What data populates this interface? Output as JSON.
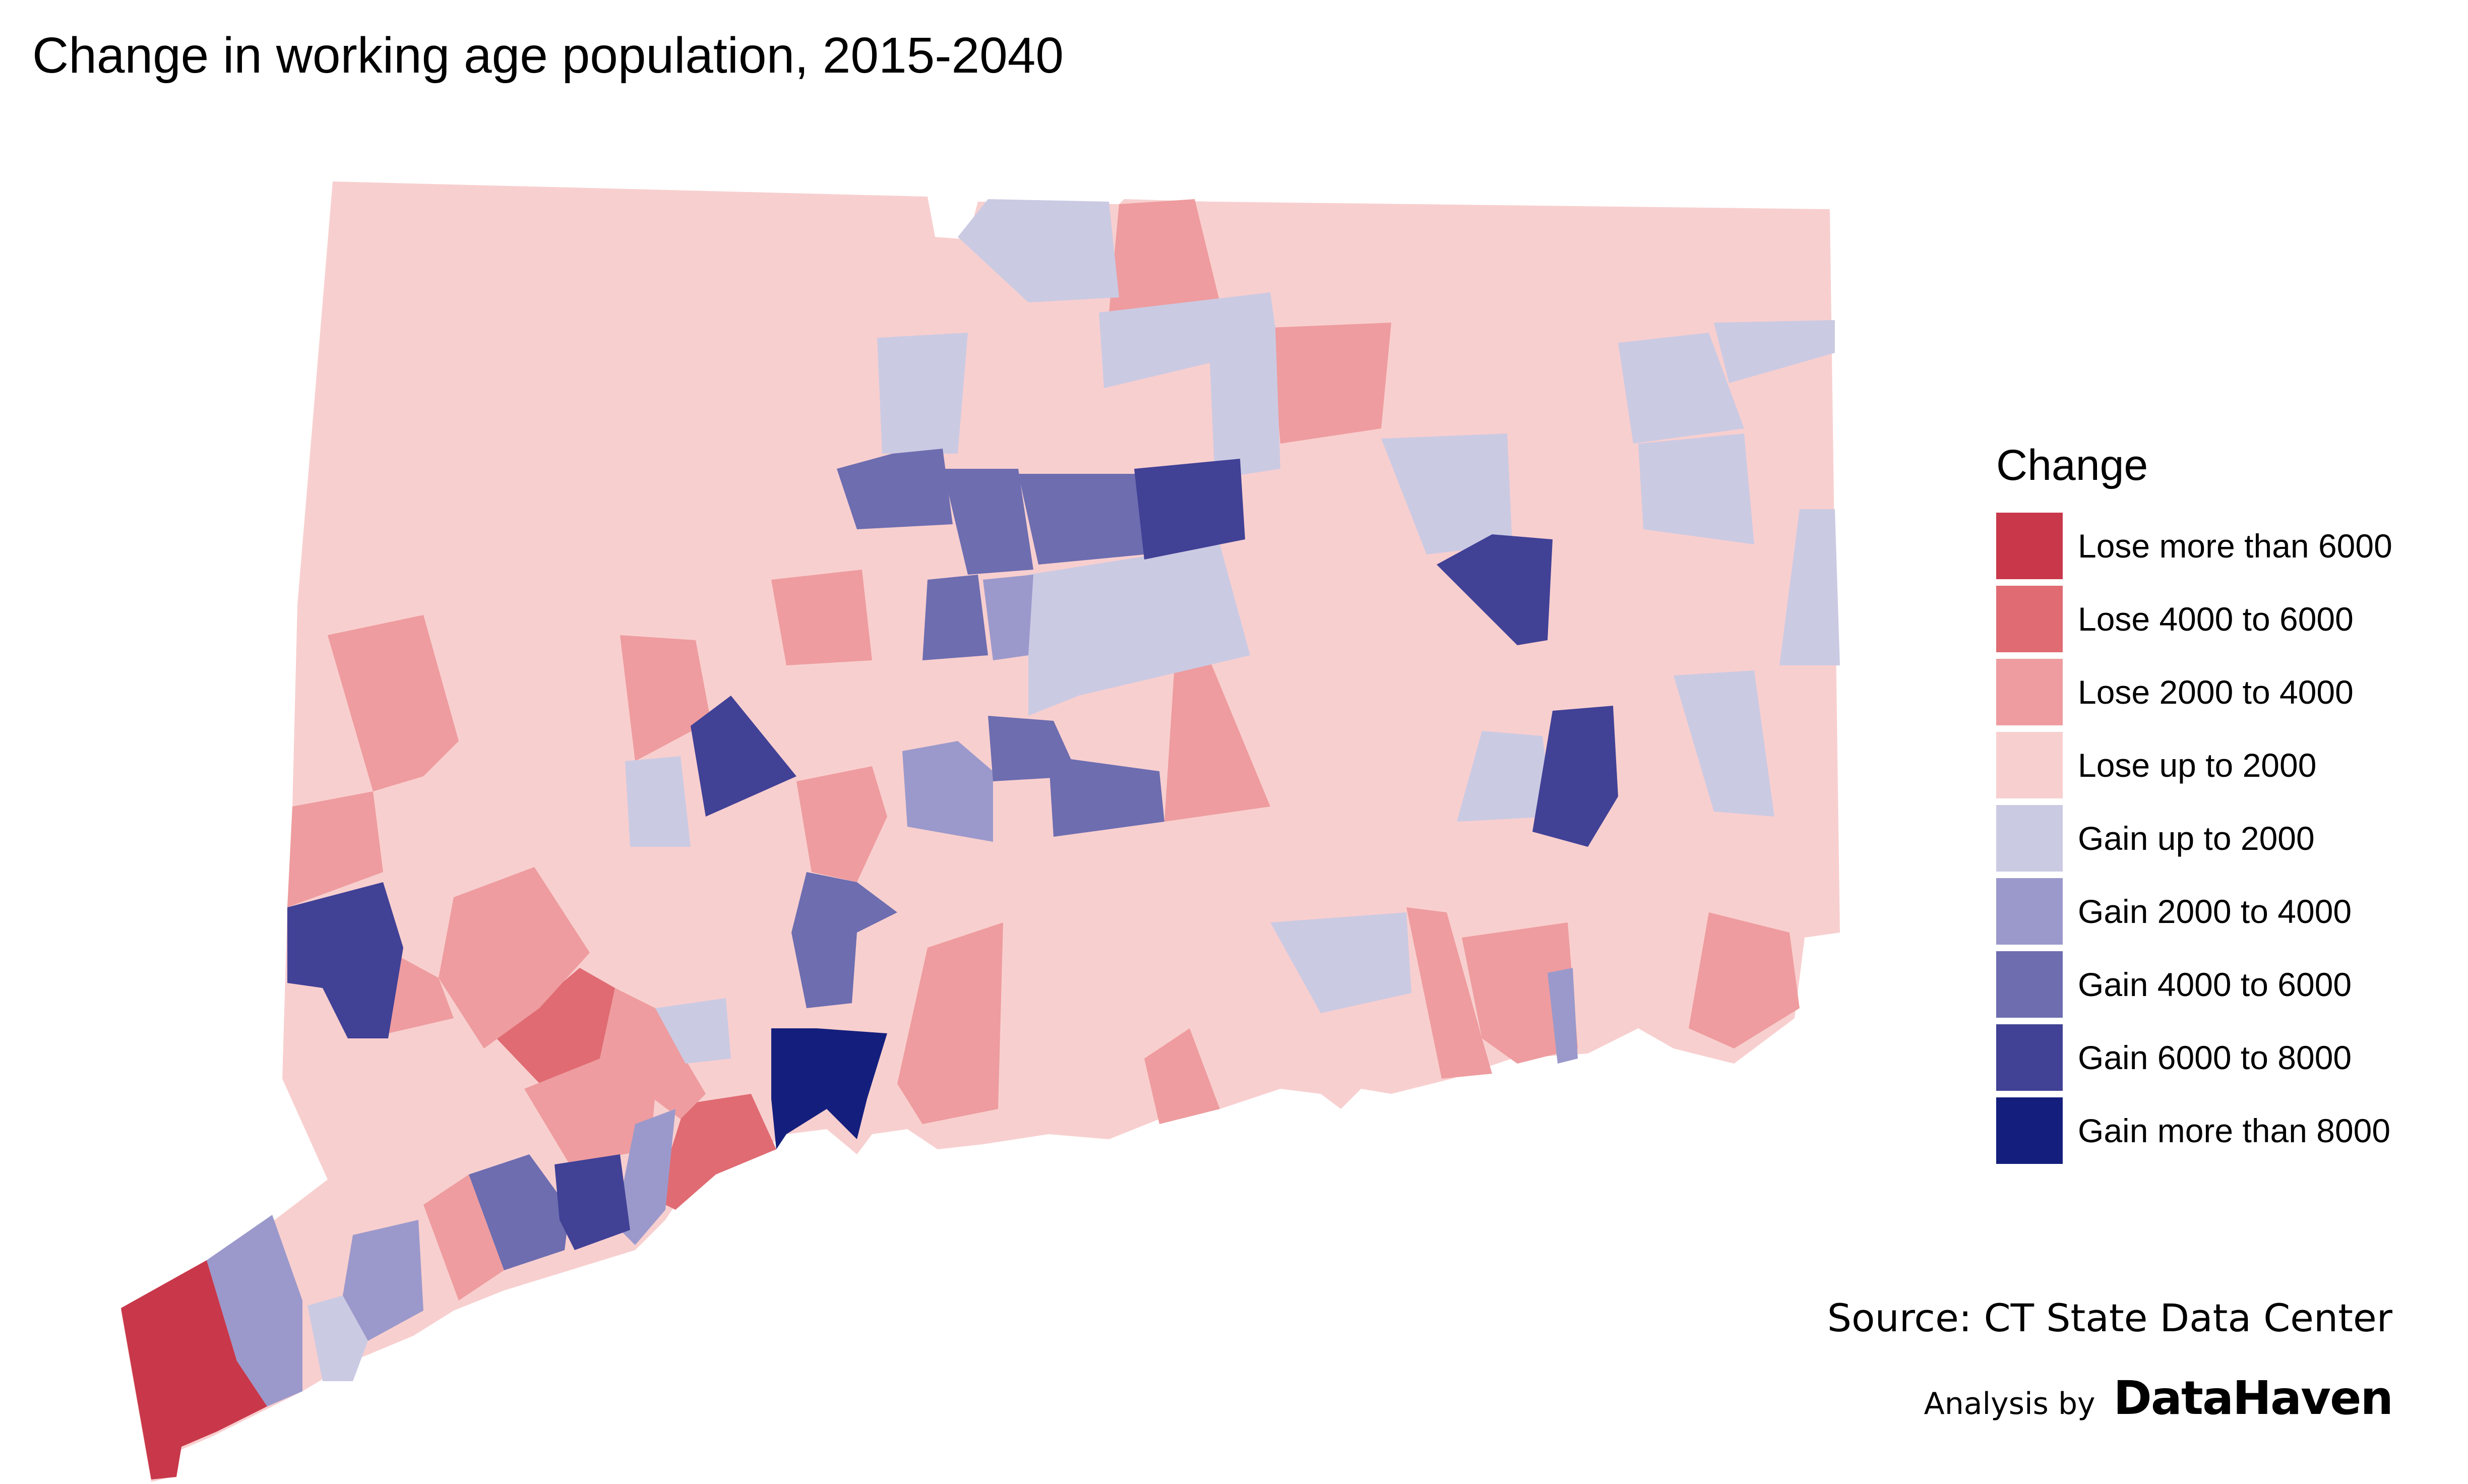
{
  "title": "Change in working age population, 2015-2040",
  "legend": {
    "title": "Change",
    "items": [
      {
        "label": "Lose more than 6000",
        "color": "#c8384a"
      },
      {
        "label": "Lose 4000 to 6000",
        "color": "#e06b73"
      },
      {
        "label": "Lose 2000 to 4000",
        "color": "#ee9c9f"
      },
      {
        "label": "Lose up to 2000",
        "color": "#f8cfcf"
      },
      {
        "label": "Gain up to 2000",
        "color": "#cbcae3"
      },
      {
        "label": "Gain 2000 to 4000",
        "color": "#9b99cb"
      },
      {
        "label": "Gain 4000 to 6000",
        "color": "#6d6db0"
      },
      {
        "label": "Gain 6000 to 8000",
        "color": "#414196"
      },
      {
        "label": "Gain more than 8000",
        "color": "#141f7d"
      }
    ]
  },
  "source": "Source: CT State Data Center",
  "credit": {
    "prefix": "Analysis by",
    "brand": "DataHaven"
  }
}
